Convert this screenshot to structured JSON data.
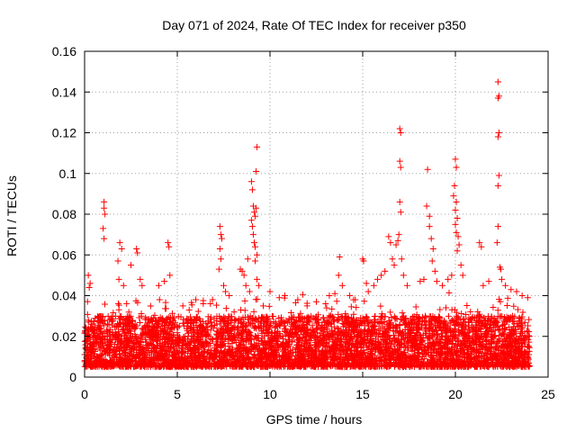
{
  "chart_data": {
    "type": "scatter",
    "title": "Day 071 of 2024, Rate Of TEC Index for receiver p350",
    "xlabel": "GPS time / hours",
    "ylabel": "ROTI / TECUs",
    "xlim": [
      0,
      25
    ],
    "ylim": [
      0,
      0.16
    ],
    "xticks": [
      0,
      5,
      10,
      15,
      20,
      25
    ],
    "yticks": [
      0,
      0.02,
      0.04,
      0.06,
      0.08,
      0.1,
      0.12,
      0.14,
      0.16
    ],
    "xtick_labels": [
      "0",
      "5",
      "10",
      "15",
      "20",
      "25"
    ],
    "ytick_labels": [
      "0",
      "0.02",
      "0.04",
      "0.06",
      "0.08",
      "0.1",
      "0.12",
      "0.14",
      "0.16"
    ],
    "grid": true,
    "marker": "+",
    "series_color": "#ff0000",
    "x_data_range": [
      0,
      24
    ],
    "baseline_band": [
      0.005,
      0.03
    ],
    "points": [
      [
        1.05,
        0.086
      ],
      [
        1.05,
        0.083
      ],
      [
        1.1,
        0.08
      ],
      [
        1.0,
        0.073
      ],
      [
        1.05,
        0.068
      ],
      [
        0.2,
        0.05
      ],
      [
        0.3,
        0.046
      ],
      [
        0.25,
        0.044
      ],
      [
        1.9,
        0.066
      ],
      [
        2.0,
        0.063
      ],
      [
        1.8,
        0.057
      ],
      [
        1.85,
        0.048
      ],
      [
        2.1,
        0.045
      ],
      [
        2.5,
        0.055
      ],
      [
        2.8,
        0.063
      ],
      [
        2.85,
        0.061
      ],
      [
        3.0,
        0.048
      ],
      [
        3.1,
        0.045
      ],
      [
        4.0,
        0.045
      ],
      [
        4.3,
        0.047
      ],
      [
        4.5,
        0.066
      ],
      [
        4.55,
        0.064
      ],
      [
        4.6,
        0.05
      ],
      [
        5.3,
        0.035
      ],
      [
        6.0,
        0.038
      ],
      [
        6.4,
        0.036
      ],
      [
        6.9,
        0.038
      ],
      [
        7.3,
        0.074
      ],
      [
        7.35,
        0.07
      ],
      [
        7.4,
        0.068
      ],
      [
        7.3,
        0.063
      ],
      [
        7.35,
        0.058
      ],
      [
        7.25,
        0.053
      ],
      [
        7.5,
        0.045
      ],
      [
        7.6,
        0.042
      ],
      [
        7.8,
        0.04
      ],
      [
        8.4,
        0.053
      ],
      [
        8.5,
        0.052
      ],
      [
        8.6,
        0.05
      ],
      [
        8.7,
        0.045
      ],
      [
        8.8,
        0.058
      ],
      [
        8.9,
        0.042
      ],
      [
        9.0,
        0.096
      ],
      [
        9.05,
        0.092
      ],
      [
        9.1,
        0.084
      ],
      [
        9.15,
        0.081
      ],
      [
        9.2,
        0.079
      ],
      [
        9.0,
        0.077
      ],
      [
        9.05,
        0.074
      ],
      [
        9.1,
        0.07
      ],
      [
        9.15,
        0.066
      ],
      [
        9.2,
        0.064
      ],
      [
        9.25,
        0.101
      ],
      [
        9.3,
        0.113
      ],
      [
        9.25,
        0.083
      ],
      [
        9.3,
        0.06
      ],
      [
        9.2,
        0.057
      ],
      [
        9.3,
        0.048
      ],
      [
        9.4,
        0.045
      ],
      [
        10.0,
        0.042
      ],
      [
        10.5,
        0.039
      ],
      [
        10.8,
        0.04
      ],
      [
        11.5,
        0.038
      ],
      [
        12.0,
        0.035
      ],
      [
        12.5,
        0.037
      ],
      [
        13.0,
        0.036
      ],
      [
        13.2,
        0.04
      ],
      [
        13.5,
        0.041
      ],
      [
        13.75,
        0.059
      ],
      [
        13.7,
        0.05
      ],
      [
        13.9,
        0.045
      ],
      [
        14.3,
        0.04
      ],
      [
        14.6,
        0.038
      ],
      [
        15.0,
        0.058
      ],
      [
        15.05,
        0.057
      ],
      [
        15.2,
        0.046
      ],
      [
        15.3,
        0.042
      ],
      [
        15.6,
        0.045
      ],
      [
        15.8,
        0.048
      ],
      [
        16.0,
        0.05
      ],
      [
        16.2,
        0.052
      ],
      [
        16.4,
        0.069
      ],
      [
        16.5,
        0.066
      ],
      [
        16.6,
        0.058
      ],
      [
        16.7,
        0.055
      ],
      [
        16.8,
        0.065
      ],
      [
        16.9,
        0.067
      ],
      [
        16.95,
        0.07
      ],
      [
        17.0,
        0.122
      ],
      [
        17.05,
        0.12
      ],
      [
        17.0,
        0.106
      ],
      [
        17.05,
        0.103
      ],
      [
        17.0,
        0.086
      ],
      [
        17.05,
        0.081
      ],
      [
        17.1,
        0.058
      ],
      [
        17.2,
        0.05
      ],
      [
        17.4,
        0.045
      ],
      [
        18.1,
        0.047
      ],
      [
        18.3,
        0.048
      ],
      [
        18.5,
        0.102
      ],
      [
        18.45,
        0.084
      ],
      [
        18.6,
        0.079
      ],
      [
        18.6,
        0.074
      ],
      [
        18.7,
        0.068
      ],
      [
        18.8,
        0.063
      ],
      [
        18.75,
        0.057
      ],
      [
        18.9,
        0.052
      ],
      [
        19.0,
        0.047
      ],
      [
        19.3,
        0.045
      ],
      [
        19.6,
        0.048
      ],
      [
        19.8,
        0.05
      ],
      [
        19.9,
        0.089
      ],
      [
        20.0,
        0.107
      ],
      [
        20.05,
        0.103
      ],
      [
        19.95,
        0.094
      ],
      [
        20.05,
        0.086
      ],
      [
        20.0,
        0.082
      ],
      [
        20.1,
        0.078
      ],
      [
        20.0,
        0.075
      ],
      [
        20.05,
        0.071
      ],
      [
        20.15,
        0.069
      ],
      [
        20.2,
        0.065
      ],
      [
        20.1,
        0.062
      ],
      [
        20.3,
        0.055
      ],
      [
        20.4,
        0.05
      ],
      [
        21.3,
        0.066
      ],
      [
        21.4,
        0.064
      ],
      [
        21.5,
        0.045
      ],
      [
        21.8,
        0.047
      ],
      [
        22.3,
        0.145
      ],
      [
        22.35,
        0.138
      ],
      [
        22.3,
        0.137
      ],
      [
        22.35,
        0.12
      ],
      [
        22.3,
        0.118
      ],
      [
        22.35,
        0.099
      ],
      [
        22.3,
        0.094
      ],
      [
        22.3,
        0.074
      ],
      [
        22.25,
        0.066
      ],
      [
        22.4,
        0.054
      ],
      [
        22.45,
        0.053
      ],
      [
        22.5,
        0.048
      ],
      [
        22.7,
        0.045
      ],
      [
        23.0,
        0.043
      ],
      [
        23.3,
        0.042
      ],
      [
        23.6,
        0.04
      ],
      [
        23.9,
        0.039
      ]
    ]
  }
}
